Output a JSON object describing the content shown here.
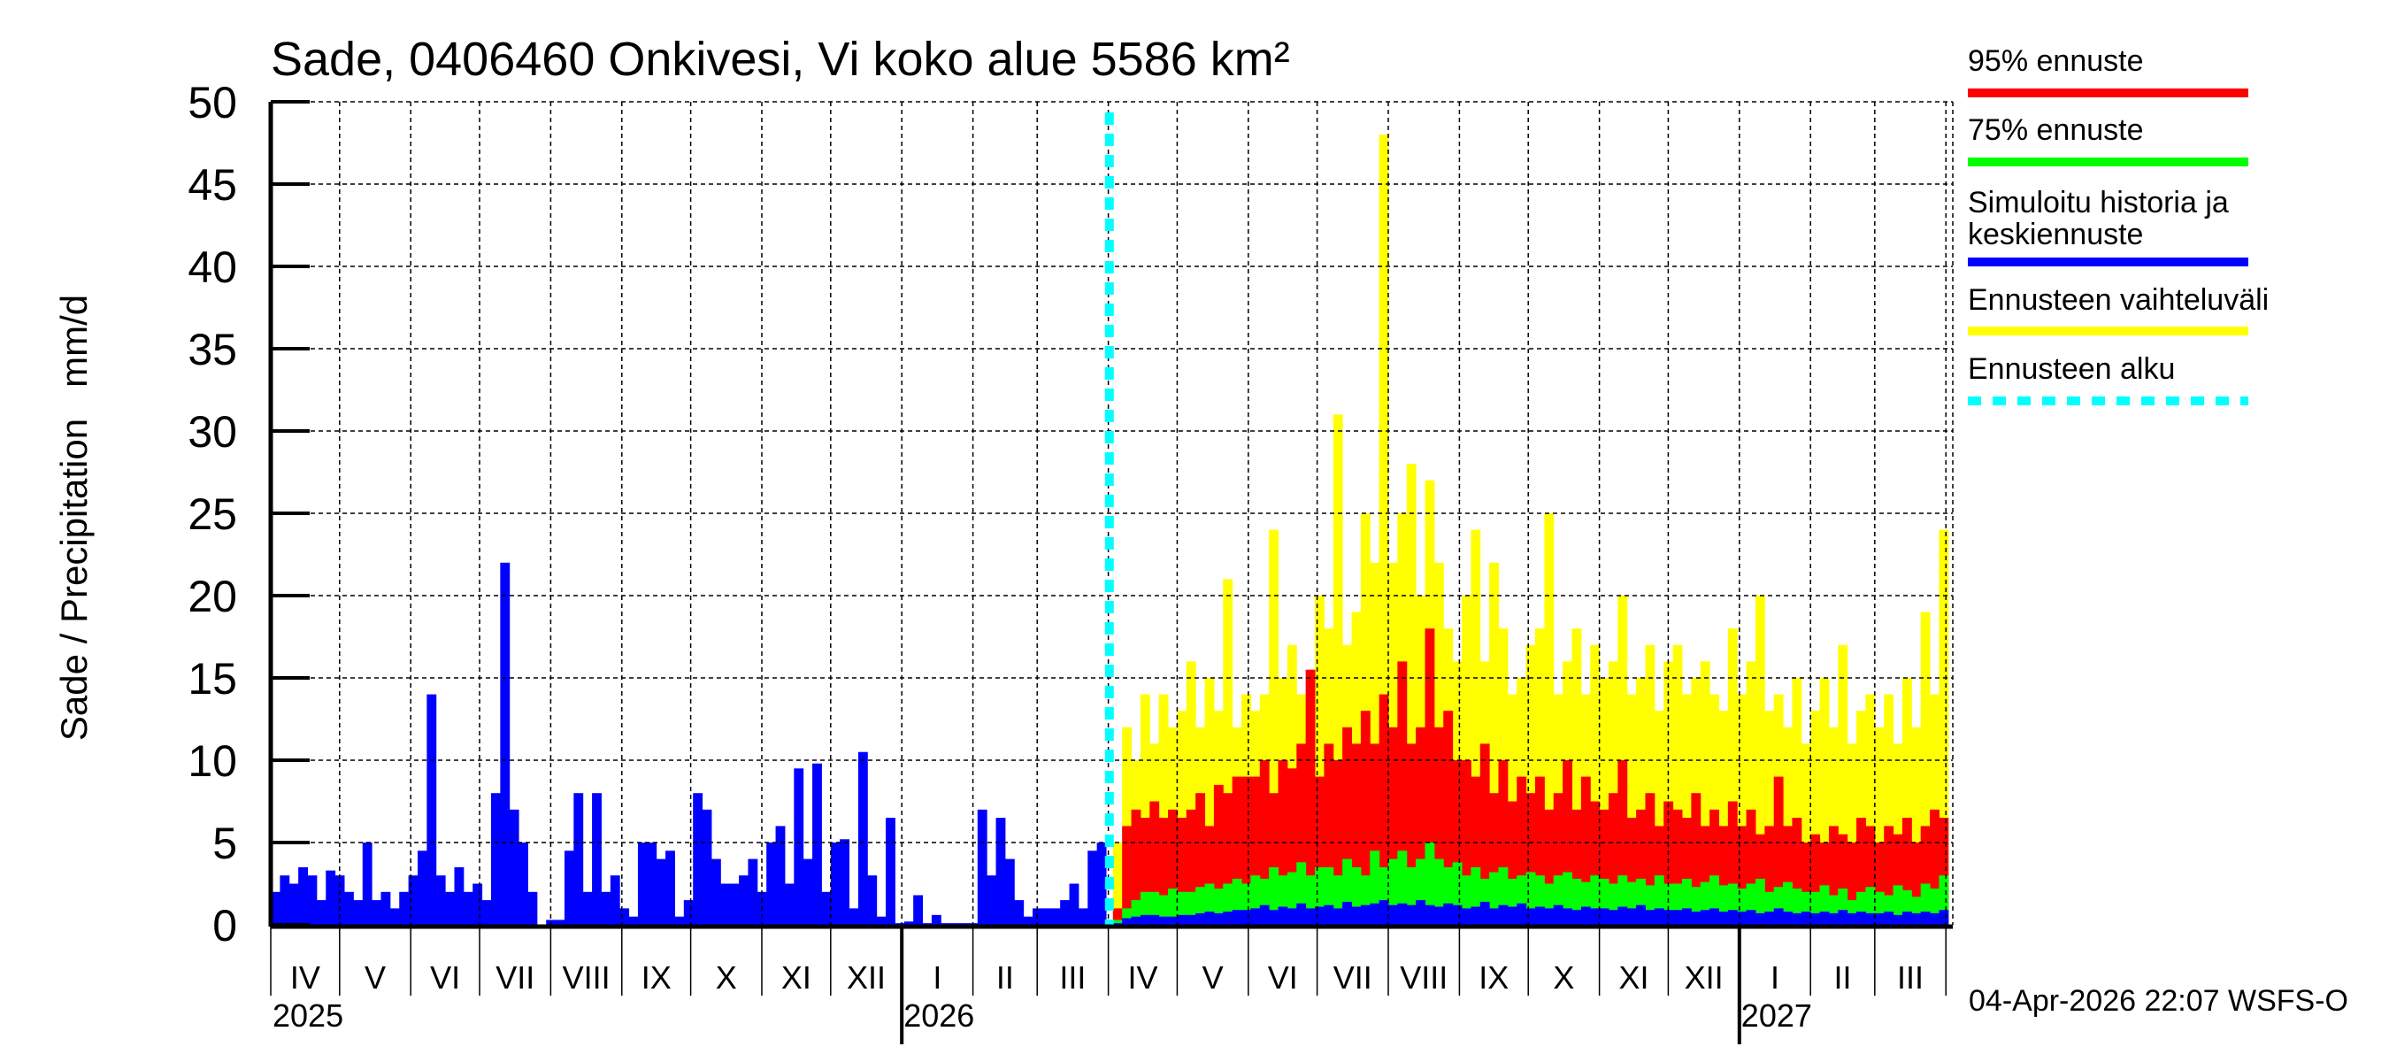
{
  "chart_data": {
    "type": "bar",
    "title": "Sade, 0406460 Onkivesi, Vi koko alue 5586 km²",
    "ylabel": "Sade / Precipitation   mm/d",
    "ylim": [
      0,
      50
    ],
    "yticks": [
      0,
      5,
      10,
      15,
      20,
      25,
      30,
      35,
      40,
      45,
      50
    ],
    "xlim": [
      "2025-04-01",
      "2027-04-04"
    ],
    "grid": true,
    "legend_placement": "right",
    "month_labels": [
      "IV",
      "V",
      "VI",
      "VII",
      "VIII",
      "IX",
      "X",
      "XI",
      "XII",
      "I",
      "II",
      "III",
      "IV",
      "V",
      "VI",
      "VII",
      "VIII",
      "IX",
      "X",
      "XI",
      "XII",
      "I",
      "II",
      "III"
    ],
    "year_labels": [
      "2025",
      "2026",
      "2027"
    ],
    "forecast_start": "2026-04-03",
    "timestamp": "04-Apr-2026 22:07 WSFS-O",
    "colors": {
      "p95": "#ff0000",
      "p75": "#00ff00",
      "mean": "#0000ff",
      "range": "#ffff00",
      "forecast_start": "#00ffff"
    },
    "legend": [
      {
        "label": "95% ennuste",
        "color": "#ff0000",
        "style": "solid"
      },
      {
        "label": "75% ennuste",
        "color": "#00ff00",
        "style": "solid"
      },
      {
        "label": "Simuloitu historia ja",
        "label2": "keskiennuste",
        "color": "#0000ff",
        "style": "solid"
      },
      {
        "label": "Ennusteen vaihteluväli",
        "color": "#ffff00",
        "style": "solid"
      },
      {
        "label": "Ennusteen alku",
        "color": "#00ffff",
        "style": "dashed"
      }
    ],
    "history": {
      "start": "2025-04-01",
      "interval_days": 4,
      "values": [
        2,
        3,
        2.5,
        3.5,
        3,
        1.5,
        3.3,
        3,
        2,
        1.5,
        5,
        1.5,
        2,
        1,
        2,
        3,
        4.5,
        14,
        3,
        2,
        3.5,
        2,
        2.5,
        1.5,
        8,
        22,
        7,
        5,
        2,
        0,
        0.3,
        0.3,
        4.5,
        8,
        2,
        8,
        2,
        3,
        1,
        0.5,
        5,
        5,
        4,
        4.5,
        0.5,
        1.5,
        8,
        7,
        4,
        2.5,
        2.5,
        3,
        4,
        2,
        5,
        6,
        2.5,
        9.5,
        4,
        9.8,
        2,
        5,
        5.2,
        1,
        10.5,
        3,
        0.5,
        6.5,
        0.1,
        0.2,
        1.8,
        0.1,
        0.6,
        0.1,
        0.1,
        0.1,
        0.1,
        7,
        3,
        6.5,
        4,
        1.5,
        0.5,
        1,
        1,
        1,
        1.5,
        2.5,
        1,
        4.5,
        5
      ]
    },
    "forecast": {
      "start": "2026-04-03",
      "interval_days": 4,
      "range_max": [
        5,
        12,
        10,
        14,
        11,
        14,
        12,
        13,
        16,
        12,
        15,
        13,
        21,
        12,
        14,
        13,
        14,
        24,
        15,
        17,
        14,
        12,
        20,
        18,
        31,
        17,
        19,
        25,
        22,
        48,
        22,
        25,
        28,
        20,
        27,
        22,
        18,
        16,
        20,
        24,
        16,
        22,
        18,
        14,
        15,
        17,
        18,
        25,
        14,
        16,
        18,
        14,
        17,
        15,
        16,
        20,
        14,
        15,
        17,
        13,
        16,
        17,
        14,
        15,
        16,
        14,
        13,
        18,
        14,
        16,
        20,
        13,
        14,
        12,
        15,
        11,
        13,
        15,
        12,
        17,
        11,
        13,
        14,
        12,
        14,
        11,
        15,
        12,
        19,
        14,
        24
      ],
      "p95": [
        1,
        6,
        7,
        6.5,
        7.5,
        6.5,
        7,
        6.5,
        7,
        8,
        6,
        8.5,
        8,
        9,
        9,
        9,
        10,
        8,
        10,
        9.5,
        11,
        15.5,
        9,
        11,
        10,
        12,
        11,
        13,
        11,
        14,
        12,
        16,
        11,
        12,
        18,
        12,
        13,
        10,
        10,
        9,
        11,
        8,
        10,
        7.5,
        9,
        8,
        9,
        7,
        8,
        10,
        7,
        9,
        7.5,
        7,
        8,
        10,
        6.5,
        7,
        8,
        6,
        7.5,
        7,
        6.5,
        8,
        6,
        7,
        6,
        7.5,
        6,
        7,
        5.5,
        6,
        9,
        6,
        6.5,
        5,
        5.5,
        5,
        6,
        5.5,
        5,
        6.5,
        6,
        5,
        6,
        5.5,
        6.5,
        5,
        6,
        7,
        6.5
      ],
      "p75": [
        0.3,
        1,
        1.5,
        2,
        2,
        1.8,
        2.2,
        2,
        2,
        2.3,
        2.5,
        2.2,
        2.5,
        2.8,
        2.5,
        3,
        2.8,
        3.5,
        3,
        3.2,
        3.8,
        3,
        3.5,
        3.5,
        3,
        4,
        3.5,
        3,
        4.5,
        3.5,
        4,
        4.5,
        3.5,
        4,
        5,
        4,
        3.5,
        3.8,
        3,
        3.5,
        2.8,
        3.2,
        3.5,
        2.8,
        3,
        3.2,
        3,
        2.5,
        3,
        3.2,
        2.8,
        2.6,
        3,
        2.8,
        2.5,
        3,
        2.6,
        2.8,
        2.4,
        3,
        2.5,
        2.5,
        2.8,
        2.3,
        2.6,
        3,
        2.4,
        2.5,
        2.2,
        2.5,
        2.8,
        2,
        2.3,
        2.6,
        2.2,
        2,
        2,
        2.4,
        1.8,
        2.2,
        1.5,
        2,
        2.3,
        2,
        1.8,
        2.4,
        2.1,
        1.7,
        2.5,
        2.2,
        3
      ],
      "mean": [
        0.1,
        0.4,
        0.5,
        0.6,
        0.6,
        0.5,
        0.5,
        0.6,
        0.6,
        0.7,
        0.8,
        0.7,
        0.8,
        0.9,
        0.9,
        1,
        1.2,
        0.9,
        1.1,
        1,
        1.3,
        1,
        1.1,
        1.2,
        1,
        1.4,
        1.1,
        1.2,
        1.3,
        1.5,
        1.2,
        1.3,
        1.2,
        1.5,
        1.2,
        1.1,
        1.3,
        1.2,
        1,
        1.1,
        1.4,
        1,
        1.2,
        1.1,
        1.3,
        1,
        1.1,
        1,
        1.2,
        1,
        0.9,
        1.1,
        1,
        1,
        0.9,
        1.1,
        1,
        1.2,
        0.9,
        1,
        0.9,
        0.9,
        1,
        0.8,
        0.9,
        1,
        0.8,
        0.9,
        0.8,
        0.9,
        0.7,
        0.8,
        1,
        0.8,
        0.7,
        0.8,
        0.7,
        0.8,
        0.7,
        0.9,
        0.7,
        0.8,
        0.7,
        0.7,
        0.8,
        0.6,
        0.8,
        0.7,
        0.8,
        0.7,
        0.9
      ]
    }
  }
}
